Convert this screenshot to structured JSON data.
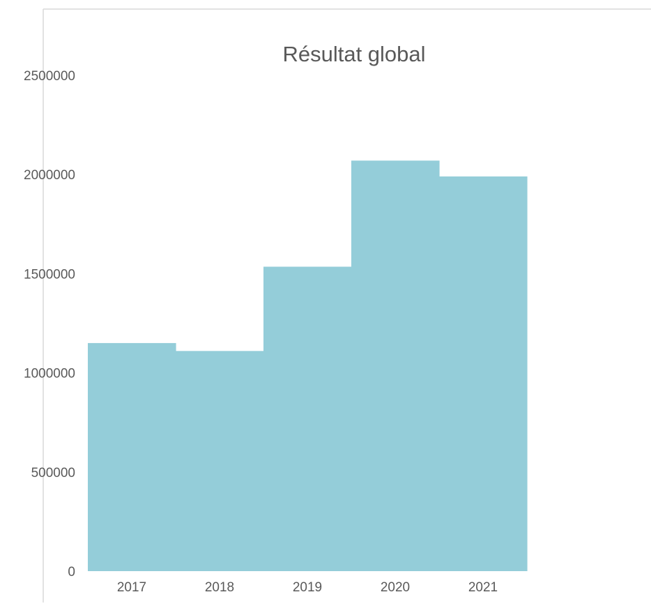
{
  "chart_data": {
    "type": "bar",
    "title": "Résultat global",
    "categories": [
      "2017",
      "2018",
      "2019",
      "2020",
      "2021"
    ],
    "series": [
      {
        "values": [
          1150000,
          1110000,
          1535000,
          2070000,
          1990000
        ]
      }
    ],
    "ylim": [
      0,
      2500000
    ],
    "yticks": [
      0,
      500000,
      1000000,
      1500000,
      2000000,
      2500000
    ],
    "grid": false,
    "legend": "none",
    "colors": {
      "bar": "#94cdd9",
      "text": "#595959",
      "title": "#595959",
      "axis_line": "#d9d9d9"
    }
  }
}
